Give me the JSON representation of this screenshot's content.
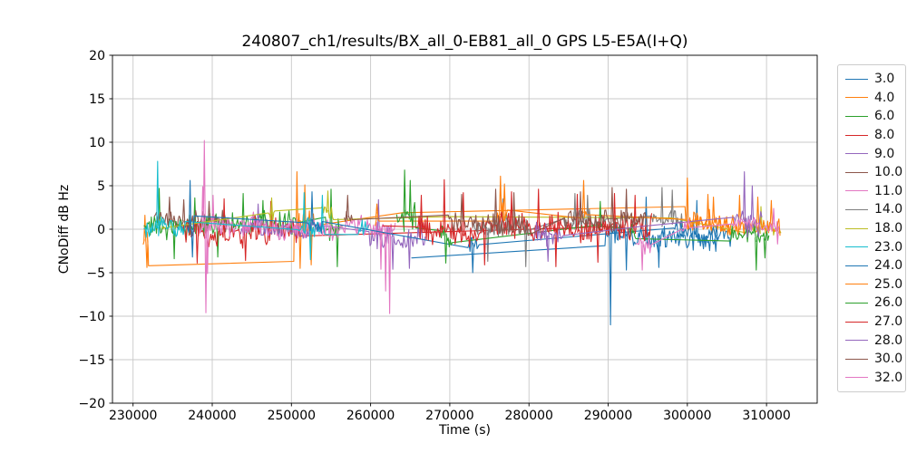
{
  "chart_data": {
    "type": "line",
    "title": "240807_ch1/results/BX_all_0-EB81_all_0 GPS L5-E5A(I+Q)",
    "xlabel": "Time (s)",
    "ylabel": "CNoDiff dB Hz",
    "xlim": [
      227400,
      316400
    ],
    "ylim": [
      -20,
      20
    ],
    "xticks": [
      230000,
      240000,
      250000,
      260000,
      270000,
      280000,
      290000,
      300000,
      310000
    ],
    "yticks": [
      -20,
      -15,
      -10,
      -5,
      0,
      5,
      10,
      15,
      20
    ],
    "grid": true,
    "grid_color": "#c8c8c8",
    "legend_position": "outside-right",
    "series": [
      {
        "label": "3.0",
        "color": "#1f77b4",
        "parts": [
          {
            "pt": [
              265200,
              -3.3
            ]
          },
          {
            "pt": [
              289600,
              -1.9
            ]
          },
          {
            "seg": [
              289700,
              305800,
              -0.4,
              -1.1,
              1.7
            ]
          }
        ],
        "spikes": [
          [
            290300,
            -11.0
          ],
          [
            292300,
            -4.7
          ],
          [
            294800,
            3.7
          ],
          [
            296400,
            -4.4
          ],
          [
            301200,
            3.3
          ]
        ]
      },
      {
        "label": "4.0",
        "color": "#ff7f0e",
        "parts": [
          {
            "seg": [
              231300,
              231900,
              -1.2,
              -1.5,
              1.8
            ]
          },
          {
            "pt": [
              231950,
              -4.2
            ]
          },
          {
            "pt": [
              250300,
              -3.7
            ]
          },
          {
            "seg": [
              250350,
              252900,
              -0.2,
              0,
              2.0
            ]
          },
          {
            "pt": [
              264000,
              1.9
            ]
          },
          {
            "pt": [
              299700,
              2.6
            ]
          },
          {
            "seg": [
              299800,
              305900,
              1.0,
              0.8,
              1.5
            ]
          }
        ],
        "spikes": [
          [
            231500,
            1.6
          ],
          [
            231750,
            -4.4
          ],
          [
            250700,
            6.6
          ],
          [
            251100,
            -4.5
          ],
          [
            251700,
            5.1
          ],
          [
            252500,
            -4.1
          ],
          [
            300000,
            5.9
          ],
          [
            302600,
            4.0
          ]
        ]
      },
      {
        "label": "6.0",
        "color": "#2ca02c",
        "parts": [
          {
            "seg": [
              231400,
              250600,
              0.5,
              0.2,
              1.7
            ]
          },
          {
            "seg": [
              254300,
              256300,
              0,
              0,
              1.9
            ]
          }
        ],
        "spikes": [
          [
            233300,
            4.7
          ],
          [
            235200,
            -3.4
          ],
          [
            237800,
            3.6
          ],
          [
            240700,
            -3.2
          ],
          [
            243900,
            4.1
          ],
          [
            246400,
            3.3
          ],
          [
            255000,
            4.6
          ],
          [
            255800,
            -4.3
          ]
        ]
      },
      {
        "label": "8.0",
        "color": "#d62728",
        "parts": [
          {
            "seg": [
              236300,
              251000,
              -0.3,
              -0.6,
              1.9
            ]
          },
          {
            "pt": [
              291000,
              0.3
            ]
          }
        ],
        "spikes": [
          [
            238100,
            -3.9
          ],
          [
            241500,
            3.5
          ],
          [
            244200,
            -3.6
          ],
          [
            247400,
            3.2
          ]
        ]
      },
      {
        "label": "9.0",
        "color": "#9467bd",
        "parts": [
          {
            "seg": [
              243600,
              252400,
              0.1,
              0.1,
              1.3
            ]
          },
          {
            "seg": [
              259800,
              266900,
              -0.6,
              -1.2,
              1.8
            ]
          }
        ],
        "spikes": [
          [
            245800,
            2.9
          ],
          [
            261000,
            3.4
          ],
          [
            262800,
            -4.6
          ],
          [
            264900,
            -4.5
          ]
        ]
      },
      {
        "label": "10.0",
        "color": "#8c564b",
        "parts": [
          {
            "seg": [
              232700,
              242200,
              1.1,
              0.9,
              1.4
            ]
          }
        ],
        "spikes": [
          [
            234600,
            3.7
          ],
          [
            236400,
            3.4
          ],
          [
            239600,
            3.2
          ]
        ]
      },
      {
        "label": "11.0",
        "color": "#e377c2",
        "parts": [
          {
            "seg": [
              238200,
              263100,
              0.4,
              0.3,
              1.6
            ]
          }
        ],
        "spikes": [
          [
            238800,
            4.9
          ],
          [
            239000,
            10.2
          ],
          [
            239200,
            -9.6
          ],
          [
            239400,
            -5.1
          ],
          [
            240100,
            3.9
          ],
          [
            261300,
            -4.6
          ],
          [
            261900,
            -7.1
          ],
          [
            262400,
            -9.7
          ]
        ]
      },
      {
        "label": "14.0",
        "color": "#7f7f7f",
        "parts": [
          {
            "seg": [
              273000,
              280300,
              0.1,
              0.2,
              1.7
            ]
          },
          {
            "seg": [
              284400,
              289700,
              0.6,
              0.6,
              1.5
            ]
          },
          {
            "seg": [
              295500,
              299400,
              1.0,
              0.8,
              1.6
            ]
          }
        ],
        "spikes": [
          [
            274800,
            -3.7
          ],
          [
            276700,
            3.5
          ],
          [
            279600,
            -4.3
          ],
          [
            285800,
            4.1
          ],
          [
            287400,
            3.9
          ],
          [
            296800,
            4.8
          ],
          [
            298100,
            4.5
          ]
        ]
      },
      {
        "label": "18.0",
        "color": "#bcbd22",
        "parts": [
          {
            "seg": [
              233100,
              233900,
              0.5,
              0.5,
              1.0
            ]
          },
          {
            "seg": [
              247100,
              247900,
              1.4,
              1.6,
              1.2
            ]
          },
          {
            "seg": [
              253800,
              255300,
              2.1,
              1.8,
              1.3
            ]
          },
          {
            "pt": [
              270000,
              1.45
            ]
          },
          {
            "pt": [
              298000,
              1.3
            ]
          },
          {
            "seg": [
              307400,
              311800,
              0.3,
              0.1,
              1.1
            ]
          }
        ],
        "spikes": [
          [
            247500,
            3.6
          ],
          [
            254600,
            4.4
          ],
          [
            309300,
            2.6
          ]
        ]
      },
      {
        "label": "23.0",
        "color": "#17becf",
        "parts": [
          {
            "seg": [
              231400,
              236600,
              0.2,
              0.1,
              1.5
            ]
          },
          {
            "seg": [
              250800,
              254200,
              0,
              0,
              1.6
            ]
          },
          {
            "seg": [
              258300,
              259700,
              0,
              0,
              1.4
            ]
          }
        ],
        "spikes": [
          [
            233100,
            7.8
          ],
          [
            251600,
            4.2
          ],
          [
            252400,
            -3.5
          ],
          [
            253900,
            3.9
          ]
        ]
      },
      {
        "label": "24.0",
        "color": "#1f77b4",
        "parts": [
          {
            "seg": [
              236900,
              237700,
              0,
              0,
              2.0
            ]
          },
          {
            "seg": [
              252000,
              253900,
              0.5,
              0.4,
              1.7
            ]
          },
          {
            "seg": [
              272300,
              273700,
              -1.8,
              -2.2,
              1.9
            ]
          },
          {
            "seg": [
              298300,
              303800,
              0.1,
              -0.3,
              1.5
            ]
          }
        ],
        "spikes": [
          [
            237200,
            5.6
          ],
          [
            237500,
            -3.2
          ],
          [
            252600,
            4.3
          ],
          [
            272900,
            -5.0
          ]
        ]
      },
      {
        "label": "25.0",
        "color": "#ff7f0e",
        "parts": [
          {
            "seg": [
              260600,
              261100,
              1.4,
              1.6,
              1.2
            ]
          },
          {
            "seg": [
              275900,
              277300,
              1.8,
              2.0,
              1.9
            ]
          },
          {
            "seg": [
              286600,
              287300,
              2.0,
              2.0,
              1.7
            ]
          },
          {
            "seg": [
              299900,
              311700,
              0.9,
              0.6,
              1.3
            ]
          }
        ],
        "spikes": [
          [
            260800,
            2.9
          ],
          [
            276400,
            6.1
          ],
          [
            276900,
            5.2
          ],
          [
            286900,
            5.6
          ],
          [
            303300,
            3.7
          ],
          [
            306600,
            3.9
          ],
          [
            308900,
            3.7
          ],
          [
            310600,
            3.3
          ]
        ]
      },
      {
        "label": "26.0",
        "color": "#2ca02c",
        "parts": [
          {
            "seg": [
              263300,
              265700,
              1.6,
              1.0,
              2.2
            ]
          },
          {
            "seg": [
              268800,
              270300,
              -0.8,
              -1.0,
              1.7
            ]
          },
          {
            "seg": [
              288700,
              289400,
              0.4,
              0.4,
              1.4
            ]
          },
          {
            "seg": [
              292700,
              293500,
              0,
              0,
              1.3
            ]
          },
          {
            "seg": [
              305400,
              310300,
              -0.8,
              -1.1,
              1.3
            ]
          }
        ],
        "spikes": [
          [
            264300,
            6.8
          ],
          [
            265000,
            5.6
          ],
          [
            269500,
            -3.9
          ],
          [
            289000,
            3.2
          ],
          [
            308700,
            -4.7
          ],
          [
            309800,
            -3.3
          ]
        ]
      },
      {
        "label": "27.0",
        "color": "#d62728",
        "parts": [
          {
            "pt": [
              261500,
              0.4
            ]
          },
          {
            "seg": [
              266000,
              295500,
              0.0,
              0.1,
              1.9
            ]
          }
        ],
        "spikes": [
          [
            266400,
            3.9
          ],
          [
            269300,
            5.7
          ],
          [
            271700,
            4.2
          ],
          [
            274400,
            -4.1
          ],
          [
            277800,
            4.3
          ],
          [
            281200,
            4.6
          ],
          [
            283400,
            -4.3
          ],
          [
            286100,
            4.0
          ],
          [
            288700,
            -3.8
          ],
          [
            290800,
            4.1
          ],
          [
            293400,
            3.9
          ]
        ]
      },
      {
        "label": "28.0",
        "color": "#9467bd",
        "parts": [
          {
            "seg": [
              280700,
              284300,
              -0.7,
              -1.0,
              1.7
            ]
          },
          {
            "pt": [
              294000,
              0.3
            ]
          },
          {
            "seg": [
              305900,
              309400,
              1.3,
              1.0,
              2.0
            ]
          }
        ],
        "spikes": [
          [
            282400,
            -3.7
          ],
          [
            307200,
            6.6
          ],
          [
            308200,
            5.0
          ]
        ]
      },
      {
        "label": "30.0",
        "color": "#8c564b",
        "parts": [
          {
            "seg": [
              256700,
              257700,
              1.4,
              1.4,
              1.5
            ]
          },
          {
            "seg": [
              269800,
              279900,
              0.9,
              0.7,
              1.6
            ]
          },
          {
            "seg": [
              284500,
              294900,
              0.8,
              1.0,
              1.6
            ]
          }
        ],
        "spikes": [
          [
            257100,
            3.9
          ],
          [
            271500,
            4.0
          ],
          [
            275800,
            4.6
          ],
          [
            278100,
            4.2
          ],
          [
            286500,
            4.3
          ],
          [
            290500,
            4.8
          ],
          [
            292300,
            4.6
          ]
        ]
      },
      {
        "label": "32.0",
        "color": "#e377c2",
        "parts": [
          {
            "seg": [
              293500,
              295400,
              -1.2,
              -1.5,
              1.8
            ]
          },
          {
            "seg": [
              299300,
              300300,
              0.3,
              0.3,
              1.2
            ]
          },
          {
            "seg": [
              305700,
              311600,
              0.5,
              0.3,
              1.0
            ]
          }
        ],
        "spikes": [
          [
            294300,
            -4.7
          ],
          [
            310900,
            2.4
          ],
          [
            311400,
            -1.7
          ]
        ]
      }
    ]
  }
}
